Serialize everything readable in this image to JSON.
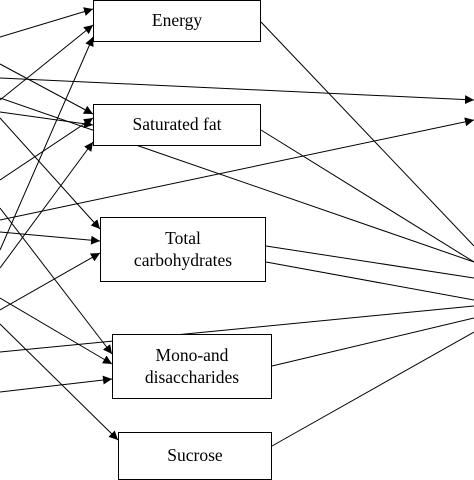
{
  "diagram": {
    "nodes": {
      "energy": "Energy",
      "saturated_fat": "Saturated fat",
      "total_carbohydrates": "Total\ncarbohydrates",
      "mono_disaccharides": "Mono-and\ndisaccharides",
      "sucrose": "Sucrose"
    },
    "line_color": "#000000"
  }
}
